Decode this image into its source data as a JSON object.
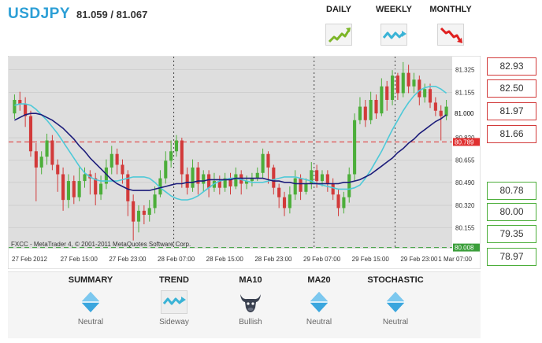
{
  "header": {
    "pair": "USDJPY",
    "price": "81.059 / 81.067"
  },
  "timeframes": [
    {
      "label": "DAILY",
      "icon": "trend-up-icon",
      "color": "#7db629"
    },
    {
      "label": "WEEKLY",
      "icon": "trend-sideway-icon",
      "color": "#3ab3d6"
    },
    {
      "label": "MONTHLY",
      "icon": "trend-down-icon",
      "color": "#e02020"
    }
  ],
  "chart": {
    "watermark": "FXCC - MetaTrader 4, © 2001-2011 MetaQuotes Software Corp.",
    "current_price": "81.000",
    "red_line_label": "80.789",
    "green_line_label": "80.008",
    "colors": {
      "bull": "#4cae3a",
      "bear": "#d23a3a",
      "ma_fast": "#4ec9d8",
      "ma_slow": "#1c1c7a"
    }
  },
  "chart_data": {
    "type": "candlestick",
    "y_ticks": [
      "81.325",
      "81.155",
      "80.820",
      "80.655",
      "80.490",
      "80.320",
      "80.155"
    ],
    "x_ticks": [
      "27 Feb 2012",
      "27 Feb 15:00",
      "27 Feb 23:00",
      "28 Feb 07:00",
      "28 Feb 15:00",
      "28 Feb 23:00",
      "29 Feb 07:00",
      "29 Feb 15:00",
      "29 Feb 23:00",
      "1 Mar 07:00"
    ],
    "ylim": [
      80.0,
      81.42
    ],
    "hlines": [
      80.789,
      80.008
    ],
    "candles": [
      [
        81.0,
        81.1,
        81.14,
        80.96
      ],
      [
        81.1,
        81.07,
        81.16,
        81.02
      ],
      [
        81.07,
        80.98,
        81.12,
        80.9
      ],
      [
        80.98,
        80.72,
        81.02,
        80.68
      ],
      [
        80.72,
        80.6,
        80.78,
        80.35
      ],
      [
        80.6,
        80.68,
        80.72,
        80.55
      ],
      [
        80.68,
        80.8,
        80.85,
        80.62
      ],
      [
        80.8,
        80.62,
        80.84,
        80.58
      ],
      [
        80.62,
        80.55,
        80.66,
        80.42
      ],
      [
        80.55,
        80.36,
        80.6,
        80.28
      ],
      [
        80.36,
        80.5,
        80.55,
        80.3
      ],
      [
        80.5,
        80.38,
        80.54,
        80.33
      ],
      [
        80.38,
        80.5,
        80.6,
        80.35
      ],
      [
        80.5,
        80.55,
        80.6,
        80.45
      ],
      [
        80.55,
        80.52,
        80.58,
        80.4
      ],
      [
        80.52,
        80.4,
        80.56,
        80.32
      ],
      [
        80.4,
        80.48,
        80.54,
        80.36
      ],
      [
        80.48,
        80.6,
        80.66,
        80.44
      ],
      [
        80.6,
        80.7,
        80.76,
        80.55
      ],
      [
        80.7,
        80.62,
        80.74,
        80.55
      ],
      [
        80.62,
        80.55,
        80.66,
        80.48
      ],
      [
        80.55,
        80.35,
        80.58,
        80.24
      ],
      [
        80.35,
        80.2,
        80.4,
        80.06
      ],
      [
        80.2,
        80.28,
        80.32,
        80.12
      ],
      [
        80.28,
        80.25,
        80.32,
        80.18
      ],
      [
        80.25,
        80.3,
        80.36,
        80.2
      ],
      [
        80.3,
        80.4,
        80.46,
        80.26
      ],
      [
        80.4,
        80.52,
        80.58,
        80.38
      ],
      [
        80.52,
        80.65,
        80.72,
        80.48
      ],
      [
        80.65,
        80.72,
        80.8,
        80.6
      ],
      [
        80.72,
        80.8,
        80.84,
        80.68
      ],
      [
        80.8,
        80.55,
        80.82,
        80.45
      ],
      [
        80.55,
        80.45,
        80.6,
        80.4
      ],
      [
        80.45,
        80.6,
        80.66,
        80.42
      ],
      [
        80.6,
        80.48,
        80.64,
        80.4
      ],
      [
        80.48,
        80.55,
        80.58,
        80.42
      ],
      [
        80.55,
        80.45,
        80.58,
        80.38
      ],
      [
        80.45,
        80.5,
        80.56,
        80.42
      ],
      [
        80.5,
        80.45,
        80.54,
        80.4
      ],
      [
        80.45,
        80.52,
        80.56,
        80.42
      ],
      [
        80.52,
        80.46,
        80.56,
        80.4
      ],
      [
        80.46,
        80.55,
        80.6,
        80.44
      ],
      [
        80.55,
        80.48,
        80.58,
        80.4
      ],
      [
        80.48,
        80.5,
        80.54,
        80.44
      ],
      [
        80.5,
        80.52,
        80.56,
        80.46
      ],
      [
        80.52,
        80.56,
        80.6,
        80.5
      ],
      [
        80.56,
        80.7,
        80.74,
        80.52
      ],
      [
        80.7,
        80.6,
        80.72,
        80.48
      ],
      [
        80.6,
        80.45,
        80.62,
        80.4
      ],
      [
        80.45,
        80.38,
        80.48,
        80.3
      ],
      [
        80.38,
        80.3,
        80.42,
        80.24
      ],
      [
        80.3,
        80.4,
        80.46,
        80.26
      ],
      [
        80.4,
        80.52,
        80.58,
        80.36
      ],
      [
        80.52,
        80.42,
        80.55,
        80.36
      ],
      [
        80.42,
        80.48,
        80.52,
        80.4
      ],
      [
        80.48,
        80.58,
        80.64,
        80.44
      ],
      [
        80.58,
        80.5,
        80.62,
        80.45
      ],
      [
        80.5,
        80.55,
        80.58,
        80.46
      ],
      [
        80.55,
        80.48,
        80.58,
        80.42
      ],
      [
        80.48,
        80.4,
        80.52,
        80.36
      ],
      [
        80.4,
        80.3,
        80.44,
        80.24
      ],
      [
        80.3,
        80.38,
        80.42,
        80.26
      ],
      [
        80.38,
        80.55,
        80.6,
        80.34
      ],
      [
        80.55,
        80.95,
        81.0,
        80.5
      ],
      [
        80.95,
        81.05,
        81.12,
        80.92
      ],
      [
        81.05,
        80.95,
        81.1,
        80.9
      ],
      [
        80.95,
        81.1,
        81.16,
        80.92
      ],
      [
        81.1,
        81.0,
        81.14,
        80.96
      ],
      [
        81.0,
        81.2,
        81.26,
        80.98
      ],
      [
        81.2,
        81.1,
        81.24,
        81.02
      ],
      [
        81.1,
        81.28,
        81.32,
        81.06
      ],
      [
        81.28,
        81.15,
        81.3,
        81.1
      ],
      [
        81.15,
        81.3,
        81.38,
        81.12
      ],
      [
        81.3,
        81.2,
        81.36,
        81.15
      ],
      [
        81.2,
        81.25,
        81.3,
        81.15
      ],
      [
        81.25,
        81.12,
        81.28,
        81.06
      ],
      [
        81.12,
        81.18,
        81.22,
        81.08
      ],
      [
        81.18,
        81.08,
        81.22,
        81.04
      ],
      [
        81.08,
        81.02,
        81.12,
        80.98
      ],
      [
        81.02,
        80.98,
        81.06,
        80.8
      ],
      [
        80.98,
        81.05,
        81.1,
        80.95
      ]
    ],
    "ma_fast": [
      81.06,
      81.07,
      81.07,
      81.06,
      81.03,
      80.99,
      80.95,
      80.9,
      80.85,
      80.79,
      80.73,
      80.67,
      80.61,
      80.56,
      80.53,
      80.51,
      80.5,
      80.5,
      80.5,
      80.5,
      80.51,
      80.52,
      80.53,
      80.53,
      80.53,
      80.52,
      80.49,
      80.45,
      80.42,
      80.39,
      80.37,
      80.36,
      80.36,
      80.37,
      80.39,
      80.42,
      80.45,
      80.48,
      80.5,
      80.51,
      80.52,
      80.52,
      80.51,
      80.5,
      80.49,
      80.49,
      80.49,
      80.5,
      80.51,
      80.52,
      80.53,
      80.53,
      80.53,
      80.52,
      80.51,
      80.5,
      80.48,
      80.47,
      80.46,
      80.45,
      80.44,
      80.44,
      80.44,
      80.45,
      80.47,
      80.52,
      80.58,
      80.65,
      80.72,
      80.8,
      80.88,
      80.95,
      81.02,
      81.08,
      81.13,
      81.17,
      81.19,
      81.2,
      81.2,
      81.18,
      81.15
    ],
    "ma_slow": [
      80.95,
      80.97,
      80.99,
      81.0,
      81.0,
      80.99,
      80.97,
      80.95,
      80.92,
      80.89,
      80.85,
      80.81,
      80.76,
      80.72,
      80.67,
      80.63,
      80.59,
      80.55,
      80.51,
      80.48,
      80.46,
      80.44,
      80.43,
      80.43,
      80.43,
      80.43,
      80.44,
      80.45,
      80.46,
      80.47,
      80.48,
      80.48,
      80.49,
      80.49,
      80.5,
      80.5,
      80.51,
      80.51,
      80.51,
      80.51,
      80.51,
      80.52,
      80.52,
      80.52,
      80.52,
      80.52,
      80.52,
      80.51,
      80.5,
      80.5,
      80.49,
      80.49,
      80.48,
      80.48,
      80.48,
      80.48,
      80.48,
      80.48,
      80.48,
      80.48,
      80.48,
      80.49,
      80.49,
      80.5,
      80.51,
      80.53,
      80.55,
      80.58,
      80.61,
      80.64,
      80.67,
      80.71,
      80.74,
      80.78,
      80.81,
      80.85,
      80.88,
      80.91,
      80.94,
      80.96,
      80.99
    ]
  },
  "levels": {
    "resistance": [
      "82.93",
      "82.50",
      "81.97",
      "81.66"
    ],
    "support": [
      "80.78",
      "80.00",
      "79.35",
      "78.97"
    ]
  },
  "summary": [
    {
      "label": "SUMMARY",
      "value": "Neutral",
      "icon": "neutral-diamond-icon"
    },
    {
      "label": "TREND",
      "value": "Sideway",
      "icon": "trend-sideway-icon"
    },
    {
      "label": "MA10",
      "value": "Bullish",
      "icon": "bull-icon"
    },
    {
      "label": "MA20",
      "value": "Neutral",
      "icon": "neutral-diamond-icon"
    },
    {
      "label": "STOCHASTIC",
      "value": "Neutral",
      "icon": "neutral-diamond-icon"
    }
  ]
}
